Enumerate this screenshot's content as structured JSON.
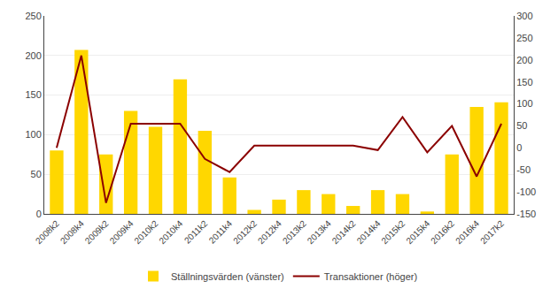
{
  "chart_data": {
    "type": "bar",
    "categories": [
      "2008k2",
      "2008k4",
      "2009k2",
      "2009k4",
      "2010k2",
      "2010k4",
      "2011k2",
      "2011k4",
      "2012k2",
      "2012k4",
      "2013k2",
      "2013k4",
      "2014k2",
      "2014k4",
      "2015k2",
      "2015k4",
      "2016k2",
      "2016k4",
      "2017k2"
    ],
    "series": [
      {
        "name": "Ställningsvärden (vänster)",
        "type": "bar",
        "color": "#FFD700",
        "values": [
          80,
          207,
          75,
          130,
          110,
          170,
          105,
          46,
          5,
          18,
          30,
          25,
          10,
          30,
          25,
          3,
          75,
          135,
          141
        ]
      },
      {
        "name": "Transaktioner (höger)",
        "type": "line",
        "color": "#8B0000",
        "axis": "y2",
        "values": [
          0,
          210,
          -125,
          55,
          55,
          55,
          -25,
          -55,
          5,
          5,
          5,
          5,
          5,
          -5,
          70,
          -10,
          50,
          -65,
          55
        ]
      }
    ],
    "ylim": [
      0,
      250
    ],
    "yticks": [
      0,
      50,
      100,
      150,
      200,
      250
    ],
    "y2lim": [
      -150,
      300
    ],
    "y2ticks": [
      -150,
      -100,
      -50,
      0,
      50,
      100,
      150,
      200,
      250,
      300
    ],
    "grid": true,
    "legend": "bottom"
  }
}
